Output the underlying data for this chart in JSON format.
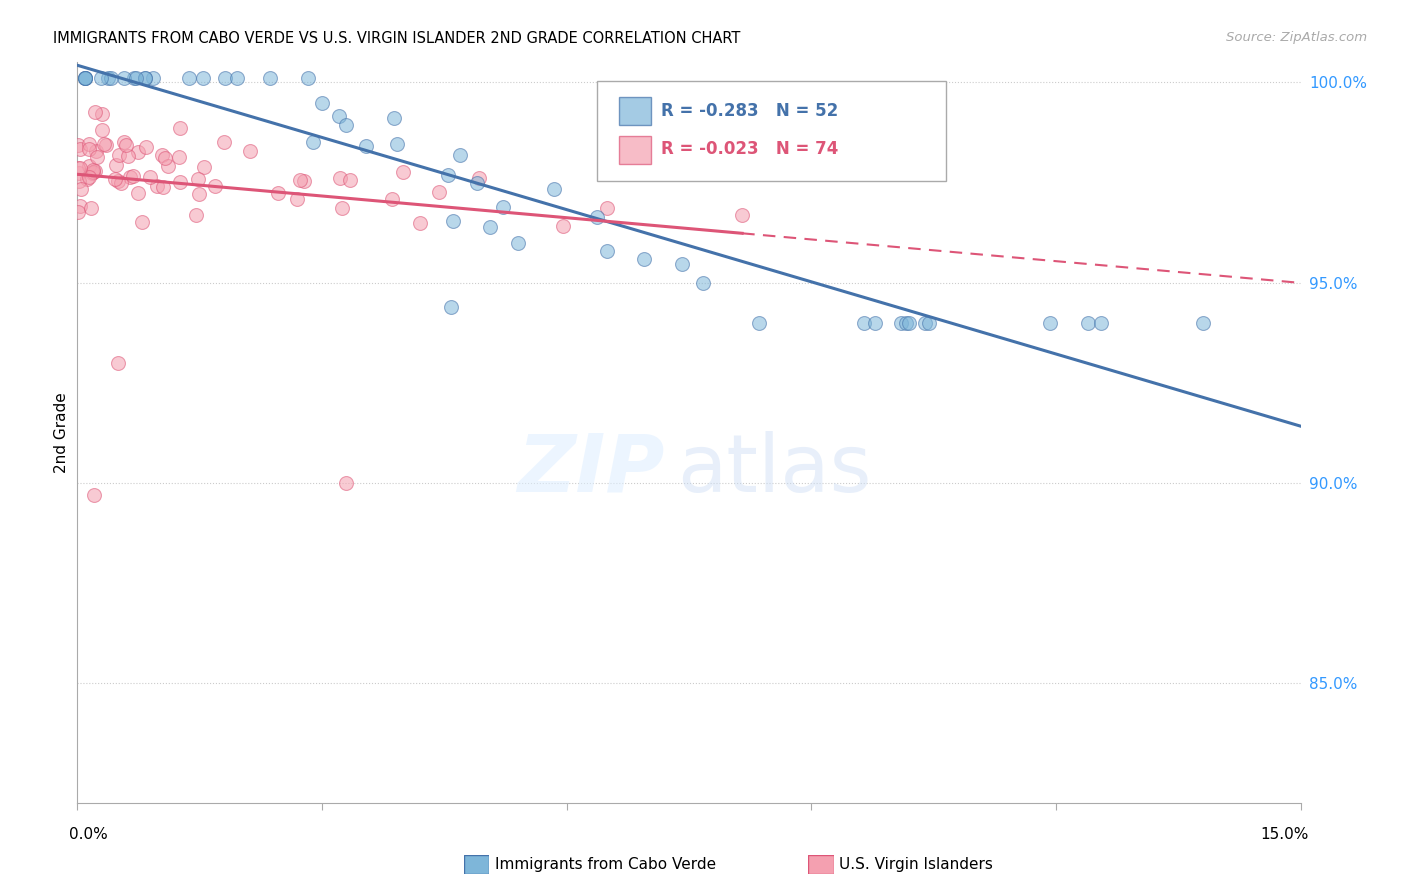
{
  "title": "IMMIGRANTS FROM CABO VERDE VS U.S. VIRGIN ISLANDER 2ND GRADE CORRELATION CHART",
  "source": "Source: ZipAtlas.com",
  "ylabel": "2nd Grade",
  "xmin": 0.0,
  "xmax": 0.15,
  "ymin": 0.82,
  "ymax": 1.005,
  "yticks": [
    0.85,
    0.9,
    0.95,
    1.0
  ],
  "ytick_labels": [
    "85.0%",
    "90.0%",
    "95.0%",
    "100.0%"
  ],
  "r_blue": -0.283,
  "n_blue": 52,
  "r_pink": -0.023,
  "n_pink": 74,
  "color_blue_fill": "#7EB6D9",
  "color_blue_edge": "#4472AA",
  "color_pink_fill": "#F4A0B0",
  "color_pink_edge": "#DD5577",
  "color_blue_line": "#4472AA",
  "color_pink_line": "#DD5577",
  "scatter_alpha": 0.55,
  "scatter_size": 100
}
